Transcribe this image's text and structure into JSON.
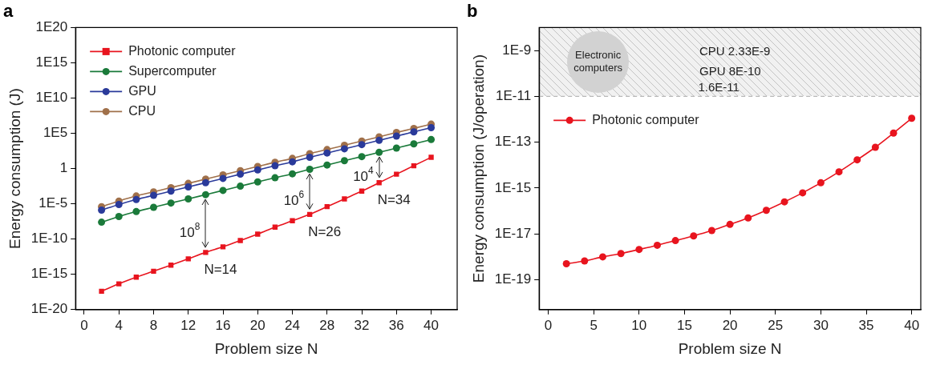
{
  "chart_data": [
    {
      "type": "line",
      "title": "a",
      "xlabel": "Problem size N",
      "ylabel": "Energy consumption (J)",
      "log": "y",
      "x": [
        2,
        4,
        6,
        8,
        10,
        12,
        14,
        16,
        18,
        20,
        22,
        24,
        26,
        28,
        30,
        32,
        34,
        36,
        38,
        40
      ],
      "xlim": [
        -1,
        43
      ],
      "xticks": [
        0,
        4,
        8,
        12,
        16,
        20,
        24,
        28,
        32,
        36,
        40
      ],
      "ylim": [
        1e-20,
        1e+20
      ],
      "yticks": [
        {
          "value": 1e-20,
          "label": "1E-20"
        },
        {
          "value": 1e-15,
          "label": "1E-15"
        },
        {
          "value": 1e-10,
          "label": "1E-10"
        },
        {
          "value": 1e-05,
          "label": "1E-5"
        },
        1,
        {
          "value": 100000.0,
          "label": "1E5"
        },
        {
          "value": 10000000000.0,
          "label": "1E10"
        },
        {
          "value": 1000000000000000.0,
          "label": "1E15"
        },
        {
          "value": 1e+20,
          "label": "1E20"
        }
      ],
      "grid": false,
      "legend": "top left",
      "series": [
        {
          "name": "Photonic computer",
          "color": "#e8141e",
          "marker": "square",
          "values": [
            4e-18,
            4.5e-17,
            4e-16,
            2.8e-15,
            2e-14,
            1.6e-13,
            1.3e-12,
            8e-12,
            6.3e-11,
            5e-10,
            5e-09,
            4e-08,
            3.2e-07,
            4e-06,
            5e-05,
            0.00063,
            0.01,
            0.16,
            2.5,
            40
          ]
        },
        {
          "name": "Supercomputer",
          "color": "#1a7a3a",
          "marker": "circle",
          "values": [
            2.5e-08,
            1.6e-07,
            8e-07,
            3.2e-06,
            1.3e-05,
            5e-05,
            0.0002,
            0.0008,
            0.0032,
            0.013,
            0.05,
            0.18,
            0.8,
            3.2,
            13,
            50,
            200,
            800,
            3200,
            13000
          ]
        },
        {
          "name": "GPU",
          "color": "#2a3a9a",
          "marker": "circle",
          "values": [
            1.3e-06,
            8e-06,
            4e-05,
            0.00016,
            0.00063,
            0.0025,
            0.01,
            0.04,
            0.16,
            0.63,
            2.5,
            9,
            40,
            160,
            630,
            2500,
            10000.0,
            40000.0,
            160000.0,
            630000.0
          ]
        },
        {
          "name": "CPU",
          "color": "#a0704a",
          "marker": "circle",
          "values": [
            4e-06,
            2.5e-05,
            0.00013,
            0.0005,
            0.002,
            0.008,
            0.032,
            0.13,
            0.5,
            2,
            8,
            28,
            130,
            500,
            2000,
            8000,
            32000.0,
            130000.0,
            500000.0,
            2000000.0
          ]
        }
      ],
      "annotations": [
        {
          "text": "10$^{8}$",
          "x": 14,
          "y": 0.0002
        },
        {
          "text": "10$^{6}$",
          "x": 26,
          "y": 0.8
        },
        {
          "text": "10$^{4}$",
          "x": 34,
          "y": 200
        },
        {
          "text": "N=14",
          "x": 14,
          "y": 1.3e-12
        },
        {
          "text": "N=26",
          "x": 26,
          "y": 3.2e-07
        },
        {
          "text": "N=34",
          "x": 34,
          "y": 0.01
        }
      ]
    },
    {
      "type": "line",
      "title": "b",
      "xlabel": "Problem size N",
      "ylabel": "Energy consumption (J/operation)",
      "log": "y",
      "x": [
        2,
        4,
        6,
        8,
        10,
        12,
        14,
        16,
        18,
        20,
        22,
        24,
        26,
        28,
        30,
        32,
        34,
        36,
        38,
        40
      ],
      "xlim": [
        -1,
        41
      ],
      "xticks": [
        0,
        5,
        10,
        15,
        20,
        25,
        30,
        35,
        40
      ],
      "ylim": [
        5e-21,
        1e-08
      ],
      "yticks": [
        {
          "value": 1e-19,
          "label": "1E-19"
        },
        {
          "value": 1e-17,
          "label": "1E-17"
        },
        {
          "value": 1e-15,
          "label": "1E-15"
        },
        {
          "value": 1e-13,
          "label": "1E-13"
        },
        {
          "value": 1e-11,
          "label": "1E-11"
        },
        {
          "value": 1e-09,
          "label": "1E-9"
        }
      ],
      "grid": false,
      "legend": "top left",
      "series": [
        {
          "name": "Photonic computer",
          "color": "#e8141e",
          "marker": "circle",
          "values": [
            5e-19,
            6.6e-19,
            1e-18,
            1.4e-18,
            2.1e-18,
            3.2e-18,
            5.1e-18,
            8.2e-18,
            1.4e-17,
            2.6e-17,
            5e-17,
            1.07e-16,
            2.5e-16,
            6.2e-16,
            1.7e-15,
            5.1e-15,
            1.7e-14,
            6e-14,
            2.5e-13,
            1.1e-12
          ]
        }
      ],
      "ref_lines": [
        {
          "axis": "y",
          "value": 1e-11,
          "color": "#aaaaaa",
          "line_style": "dashed"
        }
      ],
      "bands": [
        {
          "axis": "y",
          "from": 1e-11,
          "to": 1e-08,
          "label": "Electronic computers",
          "color": "#b4b4b4"
        }
      ],
      "annotations": [
        "CPU 2.33E-9",
        "GPU 8E-10",
        {
          "text": "1.6E-11",
          "x": 16.5,
          "y": 1e-11
        }
      ]
    }
  ]
}
